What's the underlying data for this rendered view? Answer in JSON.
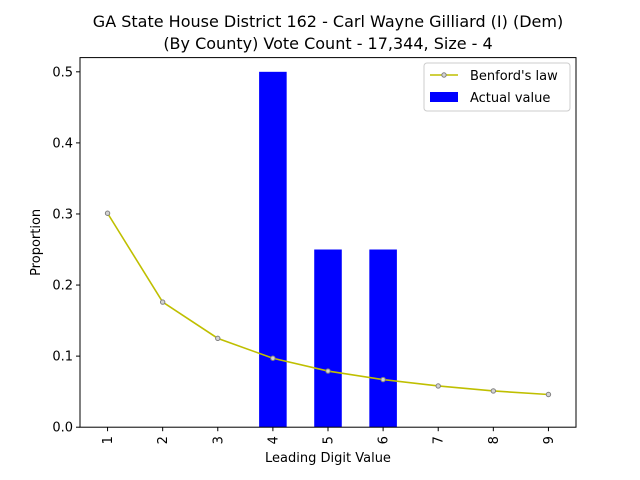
{
  "chart_data": {
    "type": "bar",
    "title_line1": "GA State House District 162 - Carl Wayne Gilliard (I) (Dem)",
    "title_line2": "(By County) Vote Count - 17,344, Size - 4",
    "xlabel": "Leading Digit Value",
    "ylabel": "Proportion",
    "categories": [
      "1",
      "2",
      "3",
      "4",
      "5",
      "6",
      "7",
      "8",
      "9"
    ],
    "ylim": [
      0,
      0.52
    ],
    "yticks": [
      "0.0",
      "0.1",
      "0.2",
      "0.3",
      "0.4",
      "0.5"
    ],
    "ytick_values": [
      0,
      0.1,
      0.2,
      0.3,
      0.4,
      0.5
    ],
    "series": [
      {
        "name": "Benford's law",
        "kind": "line",
        "color": "#bfbf00",
        "marker_fill": "#d3d3d3",
        "marker_edge": "#808080",
        "values": [
          0.301,
          0.176,
          0.125,
          0.097,
          0.079,
          0.067,
          0.058,
          0.051,
          0.046
        ]
      },
      {
        "name": "Actual value",
        "kind": "bar",
        "color": "#0000ff",
        "values": [
          0,
          0,
          0,
          0.5,
          0.25,
          0.25,
          0,
          0,
          0
        ]
      }
    ],
    "legend_position": "top-right",
    "grid": false
  }
}
